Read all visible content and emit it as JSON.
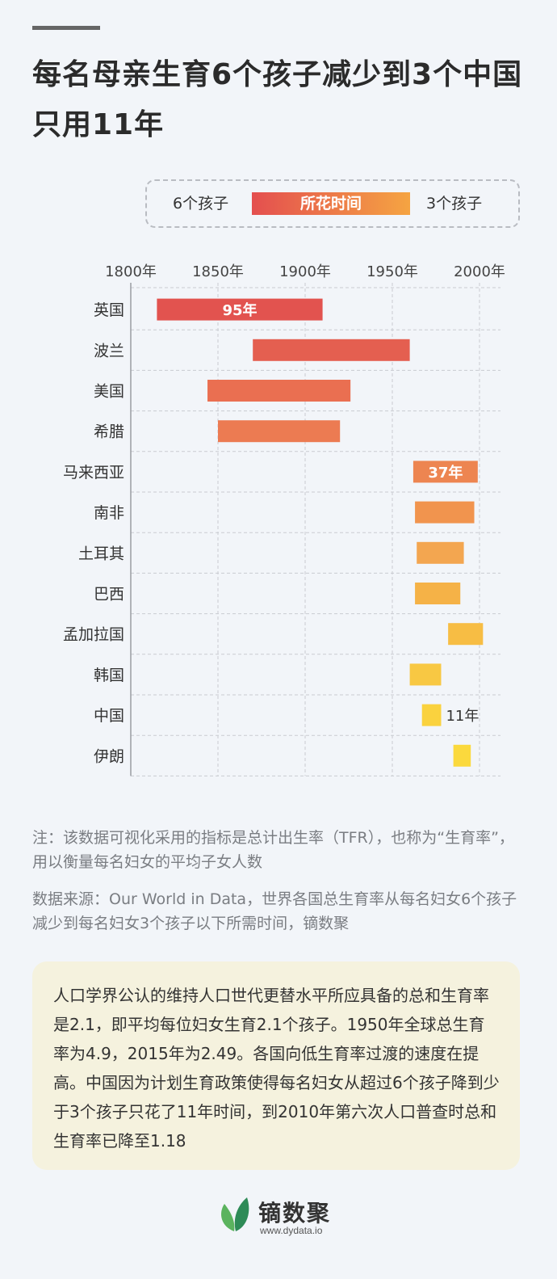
{
  "title": "每名母亲生育6个孩子减少到3个中国只用11年",
  "legend": {
    "left": "6个孩子",
    "bar": "所花时间",
    "right": "3个孩子"
  },
  "chart_data": {
    "type": "bar",
    "orientation": "horizontal-range",
    "x_ticks": [
      "1800年",
      "1850年",
      "1900年",
      "1950年",
      "2000年"
    ],
    "xlim": [
      1800,
      2013
    ],
    "grid": true,
    "series": [
      {
        "country": "英国",
        "start": 1815,
        "end": 1910,
        "label": "95年",
        "color": "#e2534f"
      },
      {
        "country": "波兰",
        "start": 1870,
        "end": 1960,
        "label": "",
        "color": "#e45f50"
      },
      {
        "country": "美国",
        "start": 1844,
        "end": 1926,
        "label": "",
        "color": "#ea6f51"
      },
      {
        "country": "希腊",
        "start": 1850,
        "end": 1920,
        "label": "",
        "color": "#ec7b52"
      },
      {
        "country": "马来西亚",
        "start": 1962,
        "end": 1999,
        "label": "37年",
        "color": "#ed8551"
      },
      {
        "country": "南非",
        "start": 1963,
        "end": 1997,
        "label": "",
        "color": "#f1944e"
      },
      {
        "country": "土耳其",
        "start": 1964,
        "end": 1991,
        "label": "",
        "color": "#f3a650"
      },
      {
        "country": "巴西",
        "start": 1963,
        "end": 1989,
        "label": "",
        "color": "#f5b247"
      },
      {
        "country": "孟加拉国",
        "start": 1982,
        "end": 2002,
        "label": "",
        "color": "#f7bd44"
      },
      {
        "country": "韩国",
        "start": 1960,
        "end": 1978,
        "label": "",
        "color": "#f8c843"
      },
      {
        "country": "中国",
        "start": 1967,
        "end": 1978,
        "label": "11年",
        "color": "#fad23e"
      },
      {
        "country": "伊朗",
        "start": 1985,
        "end": 1995,
        "label": "",
        "color": "#fbd93d"
      }
    ]
  },
  "notes": {
    "note1": "注：该数据可视化采用的指标是总计出生率（TFR），也称为“生育率”，用以衡量每名妇女的平均子女人数",
    "source": "数据来源：Our World in Data，世界各国总生育率从每名妇女6个孩子减少到每名妇女3个孩子以下所需时间，镝数聚"
  },
  "info": "人口学界公认的维持人口世代更替水平所应具备的总和生育率是2.1，即平均每位妇女生育2.1个孩子。1950年全球总生育率为4.9，2015年为2.49。各国向低生育率过渡的速度在提高。中国因为计划生育政策使得每名妇女从超过6个孩子降到少于3个孩子只花了11年时间，到2010年第六次人口普查时总和生育率已降至1.18",
  "logo": {
    "name": "镝数聚",
    "url": "www.dydata.io"
  }
}
